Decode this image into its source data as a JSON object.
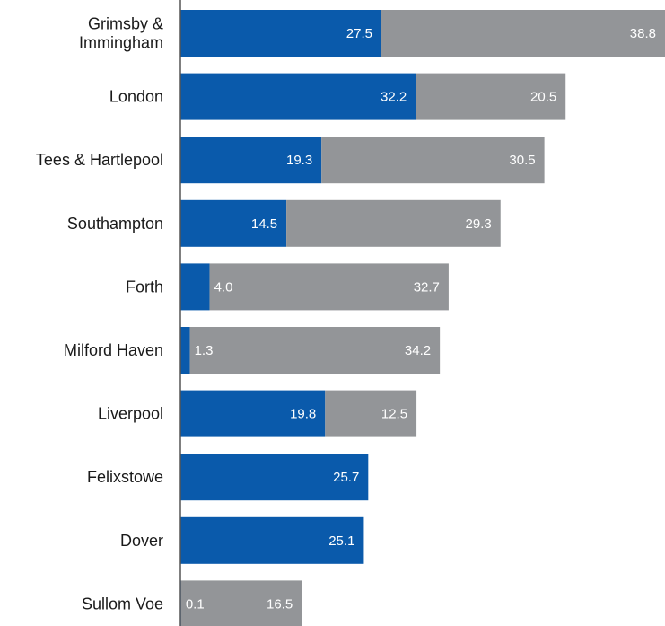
{
  "chart_data": {
    "type": "bar",
    "orientation": "horizontal",
    "stacked": true,
    "categories": [
      "Grimsby & Immingham",
      "London",
      "Tees & Hartlepool",
      "Southampton",
      "Forth",
      "Milford Haven",
      "Liverpool",
      "Felixstowe",
      "Dover",
      "Sullom Voe"
    ],
    "category_lines": [
      [
        "Grimsby &",
        "Immingham"
      ],
      [
        "London"
      ],
      [
        "Tees & Hartlepool"
      ],
      [
        "Southampton"
      ],
      [
        "Forth"
      ],
      [
        "Milford Haven"
      ],
      [
        "Liverpool"
      ],
      [
        "Felixstowe"
      ],
      [
        "Dover"
      ],
      [
        "Sullom Voe"
      ]
    ],
    "series": [
      {
        "color": "#0a5aab",
        "values": [
          27.5,
          32.2,
          19.3,
          14.5,
          4.0,
          1.3,
          19.8,
          25.7,
          25.1,
          0.1
        ],
        "labels": [
          "27.5",
          "32.2",
          "19.3",
          "14.5",
          "4.0",
          "1.3",
          "19.8",
          "25.7",
          "25.1",
          "0.1"
        ]
      },
      {
        "color": "#939598",
        "values": [
          38.8,
          20.5,
          30.5,
          29.3,
          32.7,
          34.2,
          12.5,
          null,
          null,
          16.5
        ],
        "labels": [
          "38.8",
          "20.5",
          "30.5",
          "29.3",
          "32.7",
          "34.2",
          "12.5",
          "",
          "",
          "16.5"
        ]
      }
    ],
    "xlim": [
      0,
      66.3
    ],
    "grid": false,
    "legend": "none",
    "data_labels": true
  }
}
